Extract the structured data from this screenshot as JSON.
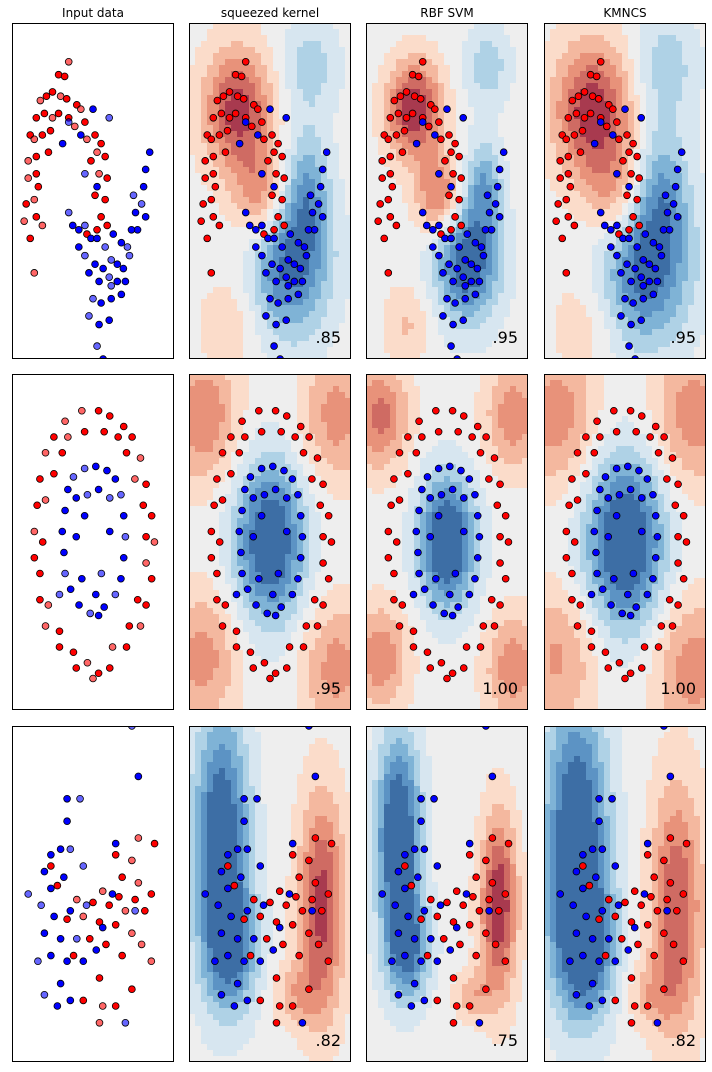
{
  "chart_data": {
    "type": "scatter",
    "columns": [
      "Input data",
      "squeezed kernel",
      "RBF SVM",
      "KMNCS"
    ],
    "rows": [
      {
        "dataset": "moons",
        "scores": [
          ".85",
          ".95",
          ".95"
        ],
        "contour_centers": [
          {
            "x": -0.3,
            "y": 1.3,
            "sign": 1,
            "amp": 1.0,
            "sx": 0.6,
            "sy": 0.5
          },
          {
            "x": 0.3,
            "y": 0.3,
            "sign": 1,
            "amp": 0.7,
            "sx": 0.5,
            "sy": 0.4
          },
          {
            "x": 1.0,
            "y": -0.5,
            "sign": -1,
            "amp": 1.0,
            "sx": 0.7,
            "sy": 0.6
          },
          {
            "x": 1.4,
            "y": 0.4,
            "sign": -1,
            "amp": 0.6,
            "sx": 0.4,
            "sy": 0.5
          },
          {
            "x": 1.5,
            "y": 1.8,
            "sign": -1,
            "amp": 0.4,
            "sx": 0.5,
            "sy": 0.4
          },
          {
            "x": -0.5,
            "y": -1.2,
            "sign": 1,
            "amp": 0.3,
            "sx": 0.5,
            "sy": 0.4
          }
        ],
        "xlim": [
          -1.5,
          2.5
        ],
        "ylim": [
          -1.6,
          2.3
        ],
        "red": [
          [
            -0.1,
            1.85
          ],
          [
            -0.35,
            1.7
          ],
          [
            -0.2,
            1.68
          ],
          [
            -0.8,
            1.4
          ],
          [
            -0.65,
            1.45
          ],
          [
            -0.5,
            1.5
          ],
          [
            -0.3,
            1.45
          ],
          [
            -0.15,
            1.42
          ],
          [
            0.1,
            1.35
          ],
          [
            0.2,
            1.3
          ],
          [
            -0.9,
            1.2
          ],
          [
            -0.7,
            1.25
          ],
          [
            -0.5,
            1.2
          ],
          [
            -0.35,
            1.25
          ],
          [
            -0.1,
            1.2
          ],
          [
            0.05,
            1.1
          ],
          [
            0.3,
            1.15
          ],
          [
            -1.05,
            1.0
          ],
          [
            -0.95,
            0.95
          ],
          [
            -0.75,
            1.0
          ],
          [
            -0.55,
            1.05
          ],
          [
            0.35,
            0.95
          ],
          [
            0.55,
            1.0
          ],
          [
            0.7,
            0.9
          ],
          [
            -1.1,
            0.7
          ],
          [
            -0.9,
            0.75
          ],
          [
            -0.6,
            0.8
          ],
          [
            0.6,
            0.8
          ],
          [
            0.8,
            0.75
          ],
          [
            0.45,
            0.7
          ],
          [
            -1.1,
            0.5
          ],
          [
            -0.9,
            0.55
          ],
          [
            -0.85,
            0.4
          ],
          [
            0.65,
            0.55
          ],
          [
            0.85,
            0.5
          ],
          [
            -1.15,
            0.2
          ],
          [
            -0.95,
            0.25
          ],
          [
            0.55,
            0.3
          ],
          [
            0.8,
            0.25
          ],
          [
            -1.2,
            0.0
          ],
          [
            -0.9,
            0.05
          ],
          [
            -1.05,
            -0.2
          ],
          [
            -0.75,
            -0.05
          ],
          [
            0.6,
            -0.1
          ],
          [
            0.85,
            -0.05
          ],
          [
            -0.95,
            -0.6
          ],
          [
            0.35,
            -0.15
          ],
          [
            0.7,
            0.05
          ]
        ],
        "blue": [
          [
            -0.1,
            1.15
          ],
          [
            0.2,
            1.0
          ],
          [
            0.5,
            1.3
          ],
          [
            0.9,
            1.2
          ],
          [
            -0.25,
            0.9
          ],
          [
            0.6,
            0.4
          ],
          [
            0.3,
            0.55
          ],
          [
            1.8,
            0.6
          ],
          [
            1.9,
            0.8
          ],
          [
            1.7,
            0.2
          ],
          [
            1.8,
            0.05
          ],
          [
            1.6,
            -0.1
          ],
          [
            1.5,
            0.3
          ],
          [
            1.75,
            0.4
          ],
          [
            1.55,
            0.1
          ],
          [
            -0.1,
            0.1
          ],
          [
            0.0,
            -0.05
          ],
          [
            0.15,
            -0.1
          ],
          [
            0.3,
            -0.05
          ],
          [
            0.45,
            -0.2
          ],
          [
            0.6,
            -0.2
          ],
          [
            0.8,
            -0.3
          ],
          [
            1.0,
            -0.15
          ],
          [
            1.2,
            -0.25
          ],
          [
            1.35,
            -0.3
          ],
          [
            1.45,
            -0.1
          ],
          [
            0.15,
            -0.3
          ],
          [
            0.3,
            -0.4
          ],
          [
            0.55,
            -0.5
          ],
          [
            0.75,
            -0.55
          ],
          [
            0.95,
            -0.45
          ],
          [
            1.1,
            -0.5
          ],
          [
            1.25,
            -0.55
          ],
          [
            1.4,
            -0.4
          ],
          [
            0.4,
            -0.6
          ],
          [
            0.65,
            -0.7
          ],
          [
            0.9,
            -0.65
          ],
          [
            1.1,
            -0.7
          ],
          [
            1.2,
            -0.85
          ],
          [
            0.5,
            -0.9
          ],
          [
            0.7,
            -0.95
          ],
          [
            0.95,
            -0.9
          ],
          [
            0.4,
            -1.1
          ],
          [
            0.65,
            -1.2
          ],
          [
            0.9,
            -1.15
          ],
          [
            0.6,
            -1.45
          ],
          [
            0.75,
            -1.6
          ],
          [
            0.5,
            -1.75
          ],
          [
            0.95,
            -0.75
          ],
          [
            1.3,
            -0.7
          ]
        ]
      },
      {
        "dataset": "circles",
        "scores": [
          ".95",
          "1.00",
          "1.00"
        ],
        "contour_centers": [
          {
            "x": 0.0,
            "y": 0.0,
            "sign": -1,
            "amp": 1.2,
            "sx": 0.45,
            "sy": 0.55
          },
          {
            "x": -1.2,
            "y": 1.2,
            "sign": 1,
            "amp": 0.7,
            "sx": 0.45,
            "sy": 0.45
          },
          {
            "x": 1.2,
            "y": 1.2,
            "sign": 1,
            "amp": 0.6,
            "sx": 0.45,
            "sy": 0.45
          },
          {
            "x": -1.2,
            "y": -1.1,
            "sign": 1,
            "amp": 0.6,
            "sx": 0.45,
            "sy": 0.45
          },
          {
            "x": 1.2,
            "y": -1.2,
            "sign": 1,
            "amp": 0.6,
            "sx": 0.45,
            "sy": 0.45
          }
        ],
        "xlim": [
          -1.45,
          1.45
        ],
        "ylim": [
          -1.6,
          1.6
        ],
        "red": [
          [
            -0.2,
            1.25
          ],
          [
            0.1,
            1.25
          ],
          [
            0.3,
            1.2
          ],
          [
            -0.5,
            1.15
          ],
          [
            0.55,
            1.1
          ],
          [
            -0.7,
            1.0
          ],
          [
            -0.45,
            1.0
          ],
          [
            0.45,
            1.0
          ],
          [
            0.7,
            1.0
          ],
          [
            -0.85,
            0.85
          ],
          [
            -0.55,
            0.85
          ],
          [
            0.6,
            0.85
          ],
          [
            0.85,
            0.8
          ],
          [
            -0.95,
            0.6
          ],
          [
            -0.7,
            0.65
          ],
          [
            0.75,
            0.6
          ],
          [
            0.95,
            0.55
          ],
          [
            -1.0,
            0.35
          ],
          [
            -0.85,
            0.4
          ],
          [
            0.9,
            0.35
          ],
          [
            1.05,
            0.25
          ],
          [
            -1.05,
            0.1
          ],
          [
            -0.9,
            0.0
          ],
          [
            0.95,
            0.05
          ],
          [
            1.1,
            0.0
          ],
          [
            -1.05,
            -0.15
          ],
          [
            -0.95,
            -0.3
          ],
          [
            0.95,
            -0.2
          ],
          [
            1.05,
            -0.35
          ],
          [
            -0.95,
            -0.55
          ],
          [
            -0.8,
            -0.6
          ],
          [
            0.8,
            -0.55
          ],
          [
            0.95,
            -0.6
          ],
          [
            -0.85,
            -0.8
          ],
          [
            -0.6,
            -0.85
          ],
          [
            0.65,
            -0.8
          ],
          [
            0.85,
            -0.8
          ],
          [
            -0.6,
            -1.0
          ],
          [
            -0.35,
            -1.05
          ],
          [
            0.35,
            -1.0
          ],
          [
            0.6,
            -1.0
          ],
          [
            -0.3,
            -1.2
          ],
          [
            -0.1,
            -1.15
          ],
          [
            0.1,
            -1.25
          ],
          [
            0.3,
            -1.2
          ],
          [
            0.0,
            -1.3
          ],
          [
            -0.15,
            1.05
          ],
          [
            0.2,
            1.05
          ]
        ],
        "blue": [
          [
            -0.15,
            0.7
          ],
          [
            0.05,
            0.72
          ],
          [
            0.25,
            0.68
          ],
          [
            -0.35,
            0.62
          ],
          [
            0.4,
            0.6
          ],
          [
            -0.45,
            0.5
          ],
          [
            0.5,
            0.45
          ],
          [
            -0.5,
            0.3
          ],
          [
            -0.3,
            0.42
          ],
          [
            0.3,
            0.42
          ],
          [
            0.55,
            0.25
          ],
          [
            -0.55,
            0.1
          ],
          [
            0.58,
            0.05
          ],
          [
            -0.52,
            -0.1
          ],
          [
            0.55,
            -0.15
          ],
          [
            -0.5,
            -0.3
          ],
          [
            0.5,
            -0.35
          ],
          [
            -0.4,
            -0.45
          ],
          [
            0.4,
            -0.5
          ],
          [
            -0.25,
            -0.6
          ],
          [
            0.2,
            -0.62
          ],
          [
            -0.05,
            -0.68
          ],
          [
            0.1,
            -0.7
          ],
          [
            -0.2,
            -0.35
          ],
          [
            0.15,
            -0.3
          ],
          [
            -0.3,
            0.05
          ],
          [
            0.3,
            0.1
          ],
          [
            -0.1,
            0.45
          ],
          [
            0.1,
            0.5
          ],
          [
            0.05,
            -0.5
          ],
          [
            -0.6,
            -0.5
          ],
          [
            -0.15,
            0.25
          ]
        ]
      },
      {
        "dataset": "linear",
        "scores": [
          ".82",
          ".75",
          ".82"
        ],
        "contour_centers": [
          {
            "x": -1.5,
            "y": 1.0,
            "sign": -1,
            "amp": 1.2,
            "sx": 0.6,
            "sy": 1.6
          },
          {
            "x": 1.6,
            "y": -0.2,
            "sign": 1,
            "amp": 1.0,
            "sx": 0.5,
            "sy": 1.4
          },
          {
            "x": -1.2,
            "y": -1.0,
            "sign": -1,
            "amp": 0.8,
            "sx": 0.6,
            "sy": 0.8
          },
          {
            "x": 0.8,
            "y": -1.8,
            "sign": 1,
            "amp": 0.4,
            "sx": 0.5,
            "sy": 0.4
          }
        ],
        "xlim": [
          -2.5,
          2.5
        ],
        "ylim": [
          -3.0,
          3.0
        ],
        "red": [
          [
            1.4,
            1.0
          ],
          [
            1.9,
            0.9
          ],
          [
            0.7,
            0.7
          ],
          [
            1.2,
            0.6
          ],
          [
            -1.3,
            0.5
          ],
          [
            0.9,
            0.3
          ],
          [
            1.4,
            0.2
          ],
          [
            1.8,
            0.0
          ],
          [
            -1.1,
            0.15
          ],
          [
            0.3,
            0.05
          ],
          [
            0.8,
            -0.05
          ],
          [
            1.3,
            -0.1
          ],
          [
            -0.5,
            -0.1
          ],
          [
            0.0,
            -0.15
          ],
          [
            0.5,
            -0.2
          ],
          [
            1.0,
            -0.3
          ],
          [
            1.6,
            -0.3
          ],
          [
            -0.8,
            -0.45
          ],
          [
            -0.3,
            -0.4
          ],
          [
            0.2,
            -0.5
          ],
          [
            0.7,
            -0.55
          ],
          [
            1.2,
            -0.7
          ],
          [
            -0.1,
            -0.8
          ],
          [
            0.4,
            -0.9
          ],
          [
            1.5,
            -0.9
          ],
          [
            -0.6,
            -1.1
          ],
          [
            0.9,
            -1.1
          ],
          [
            1.8,
            -1.2
          ],
          [
            0.2,
            -1.5
          ],
          [
            1.2,
            -1.7
          ],
          [
            0.3,
            -2.0
          ],
          [
            0.7,
            -2.0
          ],
          [
            -0.3,
            -1.9
          ],
          [
            0.2,
            -2.3
          ]
        ],
        "blue": [
          [
            1.2,
            3.0
          ],
          [
            1.4,
            2.1
          ],
          [
            -0.8,
            1.7
          ],
          [
            -0.4,
            1.7
          ],
          [
            -0.8,
            1.3
          ],
          [
            -1.0,
            0.8
          ],
          [
            -0.7,
            0.8
          ],
          [
            0.7,
            0.9
          ],
          [
            -1.3,
            0.7
          ],
          [
            -0.3,
            0.5
          ],
          [
            -1.5,
            0.4
          ],
          [
            -0.9,
            0.3
          ],
          [
            -2.0,
            0.0
          ],
          [
            0.6,
            0.0
          ],
          [
            -1.3,
            0.1
          ],
          [
            -1.6,
            -0.2
          ],
          [
            -0.7,
            -0.3
          ],
          [
            -1.2,
            -0.4
          ],
          [
            -0.2,
            -0.2
          ],
          [
            -1.0,
            -0.8
          ],
          [
            -1.5,
            -0.7
          ],
          [
            -0.5,
            -0.8
          ],
          [
            -1.3,
            -1.1
          ],
          [
            -0.8,
            -1.2
          ],
          [
            -1.7,
            -1.2
          ],
          [
            -0.3,
            -1.2
          ],
          [
            -1.0,
            -1.6
          ],
          [
            -1.5,
            -1.8
          ],
          [
            -0.7,
            -1.9
          ],
          [
            -1.1,
            -2.0
          ],
          [
            1.0,
            -2.3
          ],
          [
            0.1,
            -1.0
          ],
          [
            0.3,
            -0.6
          ],
          [
            1.3,
            -0.3
          ]
        ]
      }
    ]
  },
  "colors": {
    "red_point": "#ff0000",
    "blue_point": "#0000ff",
    "red_dark": "#b2182b",
    "blue_dark": "#2166ac"
  }
}
